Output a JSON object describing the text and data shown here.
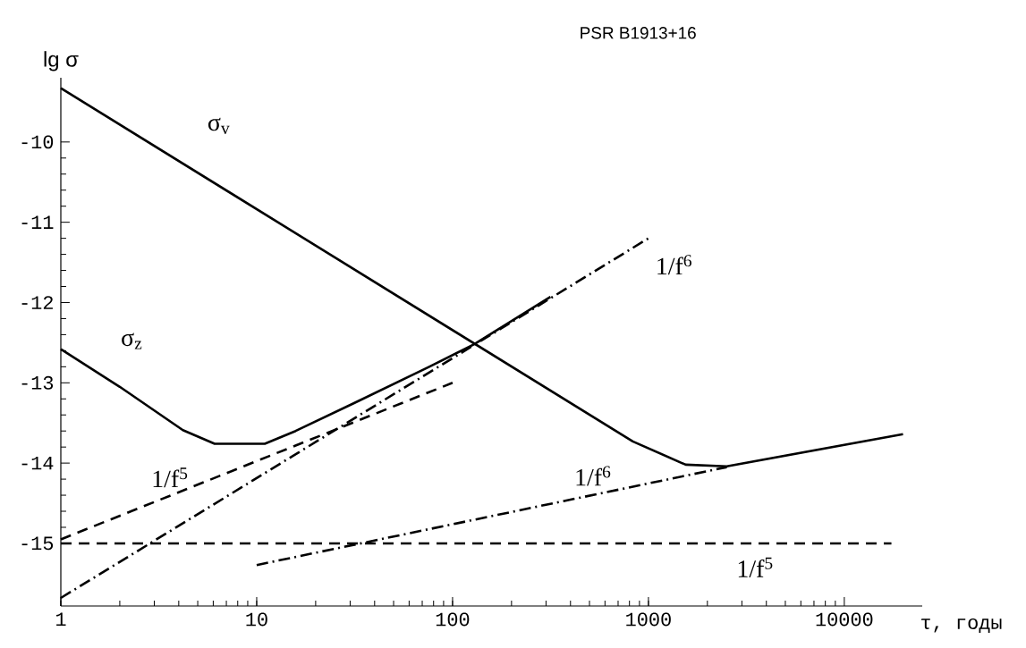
{
  "chart_data": {
    "type": "line",
    "title": "PSR B1913+16",
    "xlabel": "τ, годы",
    "ylabel": "lg σ",
    "log": "x",
    "xlim": [
      1,
      25000
    ],
    "xticks": [
      1,
      10,
      100,
      1000,
      10000
    ],
    "ylim": [
      -15.78,
      -9.2
    ],
    "yticks": [
      -10,
      -11,
      -12,
      -13,
      -14,
      -15
    ],
    "grid": false,
    "marker": "none",
    "series": [
      {
        "name": "σ$_{v}$",
        "color": "#000000",
        "line_style": "solid",
        "x": [
          1,
          832,
          1549,
          2512,
          19950
        ],
        "values": [
          -9.33,
          -13.73,
          -14.02,
          -14.04,
          -13.64
        ]
      },
      {
        "name": "σ$_{z}$",
        "color": "#000000",
        "line_style": "solid",
        "x": [
          1,
          2,
          4.2,
          6.1,
          11,
          15.8,
          31.6,
          76,
          129,
          316
        ],
        "values": [
          -12.58,
          -13.05,
          -13.59,
          -13.76,
          -13.76,
          -13.6,
          -13.25,
          -12.8,
          -12.52,
          -11.93
        ]
      },
      {
        "name": "1/f$^{6}$",
        "color": "#000000",
        "line_style": "dashdot",
        "x": [
          1,
          1000
        ],
        "values": [
          -15.68,
          -11.2
        ]
      },
      {
        "name": "1/f$^{5}$",
        "color": "#000000",
        "line_style": "dashed",
        "x": [
          1,
          100
        ],
        "values": [
          -14.95,
          -13.0
        ]
      },
      {
        "name": "1/f$^{5}$",
        "color": "#000000",
        "line_style": "dashed",
        "x": [
          1,
          17400
        ],
        "values": [
          -15.0,
          -15.0
        ]
      },
      {
        "name": "1/f$^{6}$",
        "color": "#000000",
        "line_style": "dashdot",
        "x": [
          10,
          2512
        ],
        "values": [
          -15.27,
          -14.05
        ]
      }
    ]
  }
}
